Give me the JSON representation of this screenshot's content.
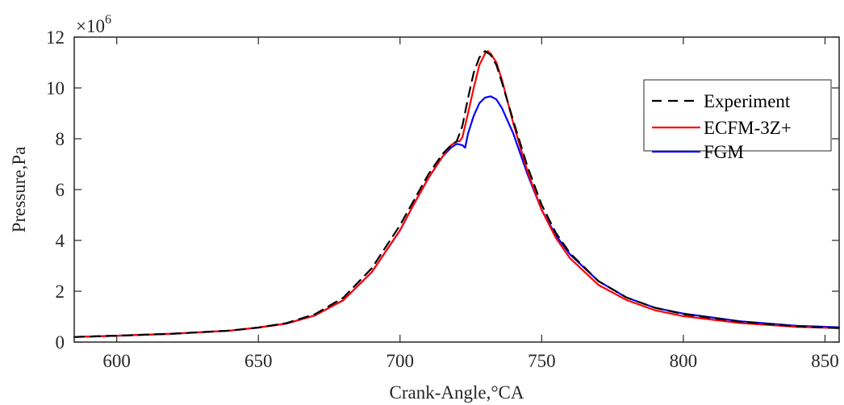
{
  "chart_data": {
    "type": "line",
    "title": "",
    "xlabel": "Crank-Angle,°CA",
    "ylabel": "Pressure,Pa",
    "y_exponent_label": "×10",
    "y_exponent_power": "6",
    "xlim": [
      585,
      855
    ],
    "ylim": [
      0,
      12
    ],
    "x_ticks": [
      600,
      650,
      700,
      750,
      800,
      850
    ],
    "y_ticks": [
      0,
      2,
      4,
      6,
      8,
      10,
      12
    ],
    "grid": false,
    "legend_position": "top-right",
    "series": [
      {
        "name": "Experiment",
        "color": "#000000",
        "dash": "dashed",
        "x": [
          585,
          600,
          620,
          640,
          650,
          660,
          670,
          680,
          690,
          700,
          705,
          710,
          715,
          718,
          720,
          722,
          724,
          726,
          728,
          730,
          732,
          734,
          736,
          740,
          745,
          750,
          755,
          760,
          770,
          780,
          790,
          800,
          820,
          840,
          855
        ],
        "y": [
          0.2,
          0.25,
          0.33,
          0.45,
          0.57,
          0.75,
          1.1,
          1.75,
          2.9,
          4.6,
          5.6,
          6.6,
          7.4,
          7.75,
          7.9,
          8.5,
          9.6,
          10.6,
          11.2,
          11.45,
          11.3,
          10.9,
          10.2,
          8.7,
          6.9,
          5.4,
          4.3,
          3.5,
          2.4,
          1.75,
          1.35,
          1.1,
          0.8,
          0.62,
          0.55
        ]
      },
      {
        "name": "ECFM-3Z+",
        "color": "#ff0000",
        "dash": "solid",
        "x": [
          585,
          600,
          620,
          640,
          650,
          660,
          670,
          680,
          690,
          700,
          705,
          710,
          715,
          718,
          720,
          721,
          722,
          724,
          726,
          728,
          730,
          731,
          732,
          734,
          736,
          740,
          745,
          750,
          755,
          760,
          770,
          780,
          790,
          800,
          820,
          840,
          855
        ],
        "y": [
          0.2,
          0.25,
          0.33,
          0.45,
          0.57,
          0.73,
          1.05,
          1.65,
          2.75,
          4.4,
          5.45,
          6.45,
          7.3,
          7.75,
          7.9,
          7.9,
          8.05,
          9.0,
          10.0,
          10.9,
          11.35,
          11.45,
          11.35,
          11.0,
          10.3,
          8.6,
          6.7,
          5.2,
          4.1,
          3.3,
          2.25,
          1.65,
          1.25,
          1.02,
          0.75,
          0.6,
          0.55
        ]
      },
      {
        "name": "FGM",
        "color": "#0000ff",
        "dash": "solid",
        "x": [
          585,
          600,
          620,
          640,
          650,
          660,
          670,
          680,
          690,
          700,
          705,
          710,
          715,
          718,
          720,
          722,
          723,
          724,
          726,
          728,
          730,
          732,
          734,
          736,
          740,
          745,
          750,
          755,
          760,
          770,
          780,
          790,
          800,
          820,
          840,
          855
        ],
        "y": [
          0.2,
          0.25,
          0.33,
          0.45,
          0.57,
          0.73,
          1.05,
          1.65,
          2.75,
          4.4,
          5.45,
          6.45,
          7.3,
          7.65,
          7.8,
          7.75,
          7.65,
          8.2,
          8.9,
          9.4,
          9.62,
          9.67,
          9.55,
          9.2,
          8.2,
          6.6,
          5.2,
          4.2,
          3.45,
          2.4,
          1.75,
          1.35,
          1.12,
          0.82,
          0.64,
          0.58
        ]
      }
    ]
  }
}
